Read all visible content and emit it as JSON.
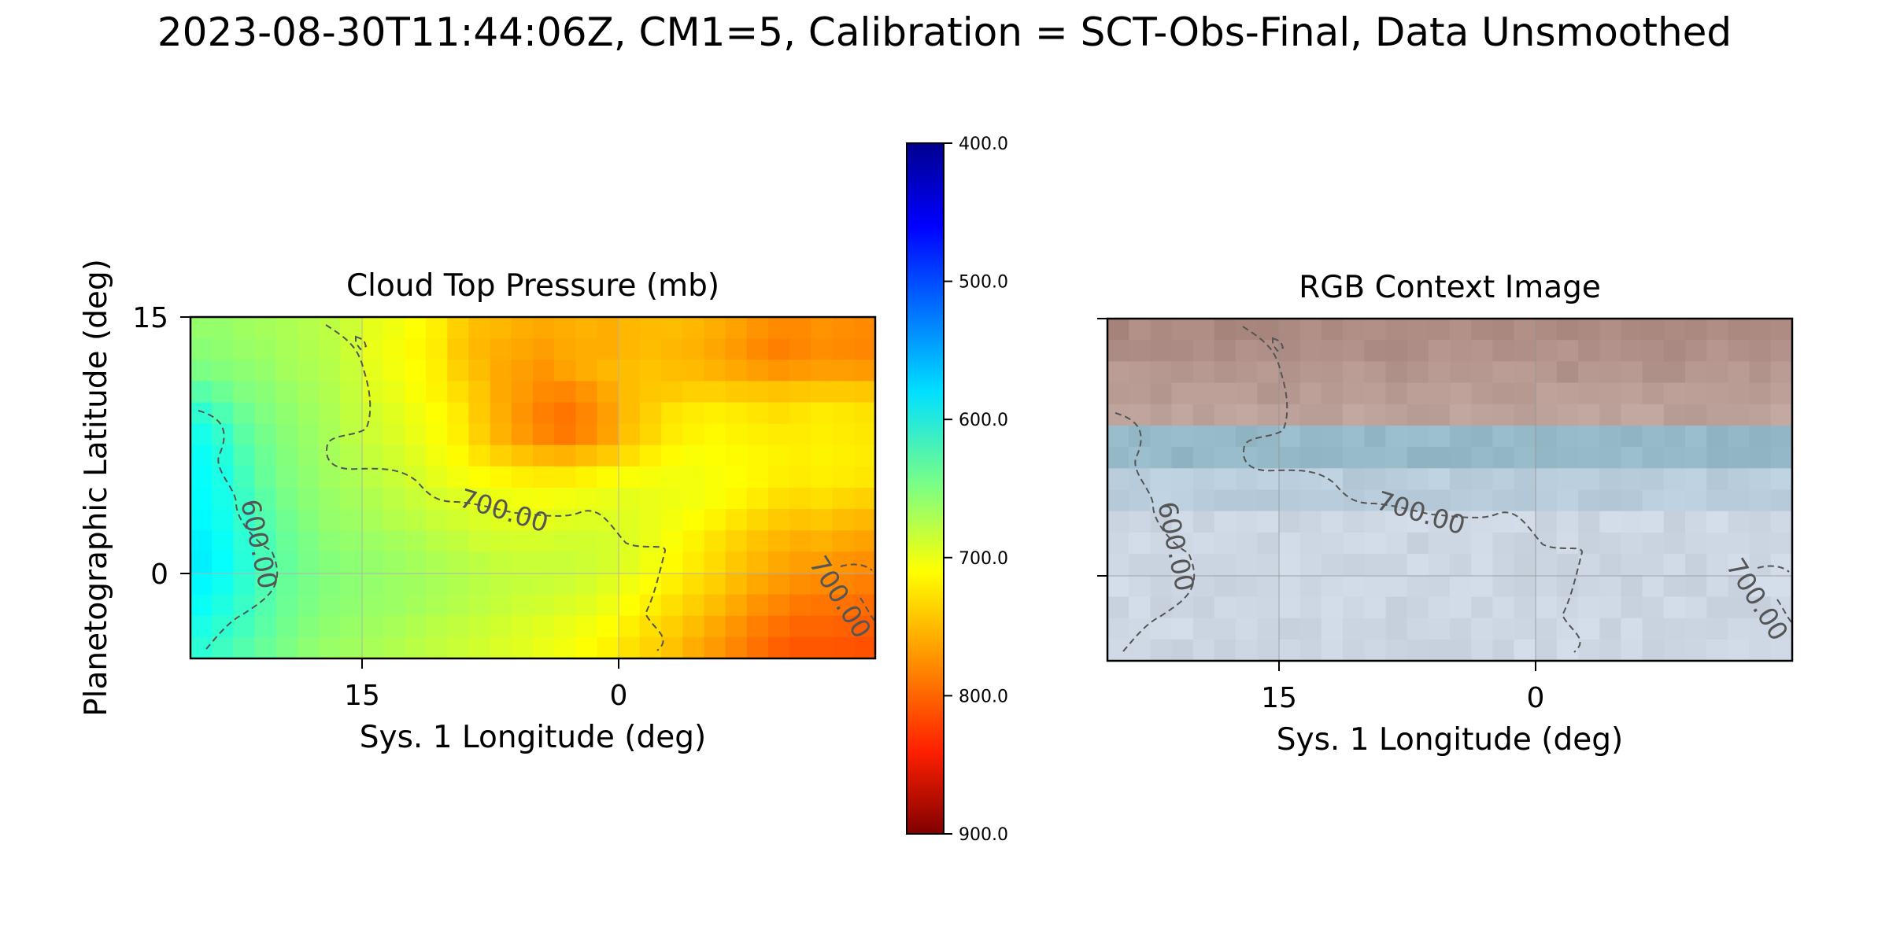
{
  "figure": {
    "suptitle": "2023-08-30T11:44:06Z, CM1=5, Calibration = SCT-Obs-Final, Data Unsmoothed"
  },
  "chart_data": [
    {
      "type": "heatmap",
      "title": "Cloud Top Pressure (mb)",
      "xlabel": "Sys. 1 Longitude (deg)",
      "ylabel": "Planetographic Latitude (deg)",
      "xlim": [
        35,
        -15
      ],
      "ylim": [
        -5,
        15
      ],
      "x_ticks": [
        "15",
        "0"
      ],
      "y_ticks": [
        "0",
        "15"
      ],
      "grid": true,
      "colormap": "jet",
      "contour_labels": [
        "600.00",
        "700.00",
        "700.00"
      ],
      "cells": {
        "cols": 32,
        "rows": 16,
        "description_of_values": "approximate cloud top pressure per cell",
        "values": [
          [
            660,
            660,
            665,
            668,
            672,
            675,
            680,
            688,
            700,
            705,
            712,
            720,
            735,
            745,
            748,
            752,
            755,
            752,
            750,
            752,
            748,
            746,
            745,
            748,
            752,
            758,
            765,
            770,
            770,
            765,
            768,
            770
          ],
          [
            655,
            658,
            662,
            665,
            670,
            674,
            678,
            688,
            702,
            708,
            715,
            722,
            738,
            748,
            752,
            756,
            760,
            755,
            752,
            752,
            748,
            745,
            748,
            750,
            756,
            762,
            770,
            775,
            772,
            768,
            770,
            772
          ],
          [
            648,
            652,
            656,
            660,
            668,
            672,
            676,
            686,
            700,
            706,
            712,
            720,
            735,
            745,
            755,
            760,
            765,
            758,
            752,
            748,
            745,
            742,
            744,
            746,
            750,
            755,
            760,
            764,
            762,
            760,
            760,
            762
          ],
          [
            630,
            640,
            650,
            655,
            662,
            668,
            674,
            684,
            698,
            702,
            710,
            718,
            728,
            740,
            755,
            762,
            770,
            772,
            765,
            755,
            745,
            740,
            738,
            735,
            735,
            738,
            740,
            742,
            740,
            738,
            738,
            740
          ],
          [
            610,
            625,
            640,
            650,
            658,
            665,
            672,
            682,
            690,
            698,
            705,
            712,
            722,
            738,
            752,
            765,
            775,
            780,
            772,
            760,
            745,
            735,
            725,
            722,
            720,
            722,
            725,
            728,
            725,
            722,
            724,
            726
          ],
          [
            598,
            612,
            632,
            645,
            655,
            662,
            670,
            680,
            688,
            695,
            702,
            710,
            720,
            735,
            750,
            762,
            772,
            778,
            770,
            758,
            742,
            732,
            722,
            718,
            715,
            718,
            720,
            722,
            722,
            720,
            722,
            724
          ],
          [
            592,
            605,
            625,
            640,
            652,
            660,
            668,
            676,
            684,
            690,
            698,
            706,
            714,
            725,
            735,
            742,
            748,
            750,
            745,
            738,
            728,
            720,
            714,
            710,
            712,
            714,
            716,
            718,
            720,
            718,
            720,
            722
          ],
          [
            590,
            600,
            620,
            638,
            650,
            658,
            666,
            672,
            680,
            686,
            692,
            700,
            706,
            712,
            716,
            720,
            722,
            722,
            718,
            714,
            710,
            708,
            706,
            706,
            710,
            712,
            716,
            720,
            722,
            720,
            722,
            724
          ],
          [
            588,
            598,
            616,
            632,
            646,
            655,
            662,
            668,
            674,
            680,
            686,
            692,
            696,
            700,
            704,
            706,
            708,
            706,
            704,
            702,
            700,
            702,
            704,
            706,
            710,
            716,
            722,
            728,
            730,
            728,
            732,
            735
          ],
          [
            586,
            596,
            612,
            628,
            642,
            652,
            660,
            664,
            670,
            676,
            680,
            686,
            690,
            694,
            698,
            700,
            700,
            698,
            696,
            696,
            698,
            702,
            706,
            712,
            718,
            725,
            732,
            738,
            742,
            740,
            745,
            748
          ],
          [
            582,
            592,
            608,
            624,
            638,
            648,
            656,
            660,
            664,
            668,
            672,
            678,
            682,
            688,
            690,
            692,
            692,
            690,
            690,
            692,
            696,
            702,
            710,
            718,
            726,
            734,
            742,
            748,
            752,
            750,
            755,
            758
          ],
          [
            580,
            590,
            606,
            622,
            636,
            646,
            652,
            656,
            660,
            664,
            668,
            672,
            676,
            680,
            684,
            686,
            686,
            686,
            688,
            692,
            698,
            706,
            714,
            722,
            730,
            740,
            748,
            755,
            760,
            760,
            765,
            768
          ],
          [
            585,
            595,
            610,
            625,
            638,
            646,
            652,
            656,
            660,
            664,
            666,
            670,
            674,
            678,
            682,
            684,
            686,
            688,
            692,
            698,
            705,
            712,
            720,
            728,
            736,
            746,
            755,
            762,
            768,
            770,
            772,
            775
          ],
          [
            592,
            602,
            615,
            628,
            640,
            648,
            654,
            658,
            662,
            664,
            668,
            672,
            676,
            680,
            684,
            688,
            690,
            694,
            698,
            704,
            712,
            720,
            728,
            736,
            745,
            755,
            765,
            772,
            778,
            780,
            782,
            784
          ],
          [
            600,
            610,
            620,
            632,
            644,
            652,
            658,
            662,
            666,
            670,
            674,
            678,
            682,
            686,
            690,
            694,
            698,
            702,
            706,
            712,
            720,
            728,
            736,
            745,
            755,
            765,
            775,
            782,
            788,
            788,
            790,
            792
          ],
          [
            608,
            618,
            628,
            638,
            648,
            656,
            662,
            666,
            670,
            674,
            678,
            682,
            686,
            690,
            694,
            698,
            702,
            706,
            712,
            718,
            726,
            734,
            742,
            752,
            762,
            772,
            782,
            790,
            795,
            795,
            796,
            798
          ]
        ]
      }
    },
    {
      "type": "heatmap",
      "title": "RGB Context Image",
      "xlabel": "Sys. 1 Longitude (deg)",
      "xlim": [
        35,
        -15
      ],
      "ylim": [
        -5,
        15
      ],
      "x_ticks": [
        "15",
        "0"
      ],
      "grid": true,
      "contour_labels": [
        "600.00",
        "700.00",
        "700.00"
      ]
    }
  ],
  "colorbar": {
    "colormap": "jet",
    "range": [
      400,
      900
    ],
    "inverted": true,
    "ticks": [
      "400.0",
      "500.0",
      "600.0",
      "700.0",
      "800.0",
      "900.0"
    ]
  }
}
